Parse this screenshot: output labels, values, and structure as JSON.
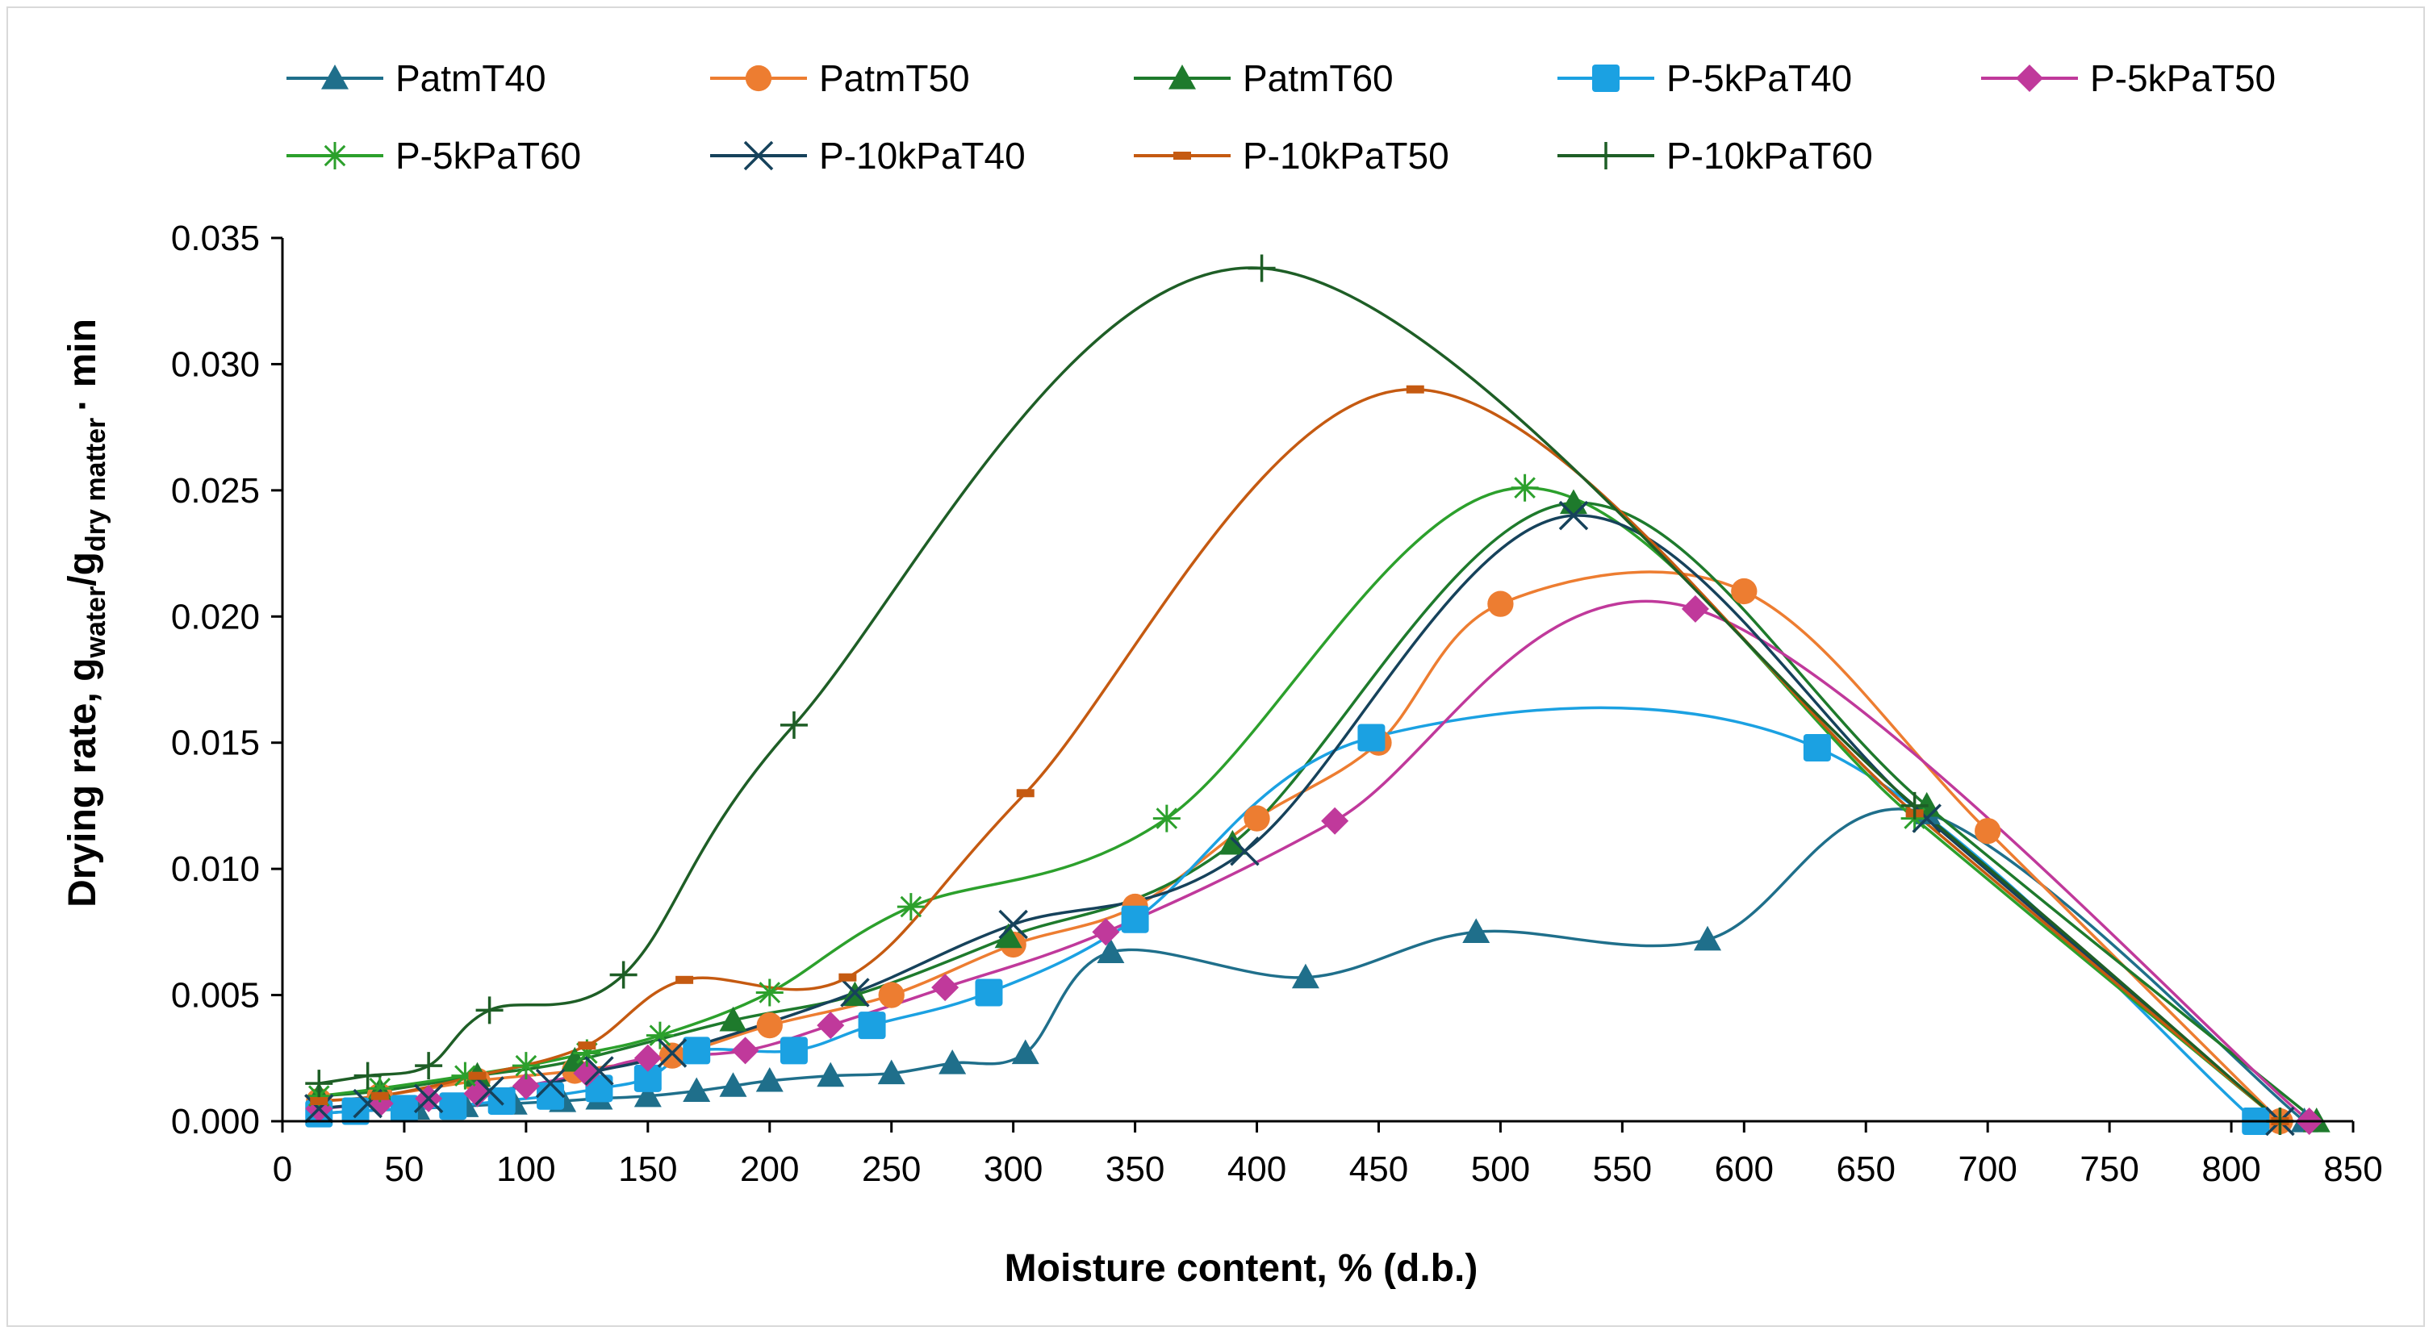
{
  "chart_data": {
    "type": "scatter",
    "xlabel": "Moisture content, % (d.b.)",
    "ylabel": {
      "main": "Drying rate, g",
      "sub1": "water",
      "mid": "/g",
      "sub2": "dry matter",
      "tail": "· min"
    },
    "xlim": [
      0,
      850
    ],
    "ylim": [
      0,
      0.035
    ],
    "xticks": [
      "0",
      "50",
      "100",
      "150",
      "200",
      "250",
      "300",
      "350",
      "400",
      "450",
      "500",
      "550",
      "600",
      "650",
      "700",
      "750",
      "800",
      "850"
    ],
    "yticks": [
      "0.000",
      "0.005",
      "0.010",
      "0.015",
      "0.020",
      "0.025",
      "0.030",
      "0.035"
    ],
    "grid": false,
    "legend_position": "top",
    "series": [
      {
        "name": "PatmT40",
        "color": "#1f6f8b",
        "marker": "triangle",
        "x": [
          15,
          30,
          55,
          75,
          95,
          115,
          130,
          150,
          170,
          185,
          200,
          225,
          250,
          275,
          305,
          340,
          420,
          490,
          585,
          675,
          830
        ],
        "y": [
          0.0003,
          0.0004,
          0.0005,
          0.0006,
          0.0007,
          0.0008,
          0.0009,
          0.001,
          0.0012,
          0.0014,
          0.0016,
          0.0018,
          0.0019,
          0.0023,
          0.0027,
          0.0067,
          0.0057,
          0.0075,
          0.0072,
          0.0122,
          0
        ]
      },
      {
        "name": "PatmT50",
        "color": "#ed7d31",
        "marker": "circle",
        "x": [
          15,
          40,
          80,
          120,
          160,
          200,
          250,
          300,
          350,
          400,
          450,
          500,
          600,
          700,
          820
        ],
        "y": [
          0.0008,
          0.001,
          0.0016,
          0.002,
          0.0026,
          0.0038,
          0.005,
          0.007,
          0.0085,
          0.012,
          0.015,
          0.0205,
          0.021,
          0.0115,
          0
        ]
      },
      {
        "name": "PatmT60",
        "color": "#1e7a2c",
        "marker": "triangle",
        "x": [
          15,
          40,
          80,
          120,
          185,
          235,
          298,
          390,
          530,
          675,
          835
        ],
        "y": [
          0.001,
          0.0012,
          0.0018,
          0.0024,
          0.004,
          0.005,
          0.0073,
          0.011,
          0.0245,
          0.0125,
          0
        ]
      },
      {
        "name": "P-5kPaT40",
        "color": "#1ba1e2",
        "marker": "square",
        "x": [
          15,
          30,
          50,
          70,
          90,
          110,
          130,
          150,
          170,
          210,
          242,
          290,
          350,
          447,
          630,
          810
        ],
        "y": [
          0.0003,
          0.0004,
          0.0005,
          0.0006,
          0.0008,
          0.001,
          0.0013,
          0.0017,
          0.0028,
          0.0028,
          0.0038,
          0.0051,
          0.008,
          0.0152,
          0.0148,
          0
        ]
      },
      {
        "name": "P-5kPaT50",
        "color": "#c0399b",
        "marker": "diamond",
        "x": [
          15,
          40,
          60,
          80,
          100,
          125,
          150,
          190,
          225,
          272,
          338,
          432,
          580,
          832
        ],
        "y": [
          0.0005,
          0.0007,
          0.0009,
          0.0011,
          0.0014,
          0.0019,
          0.0025,
          0.0028,
          0.0038,
          0.0053,
          0.0075,
          0.0119,
          0.0203,
          0
        ]
      },
      {
        "name": "P-5kPaT60",
        "color": "#2ca02c",
        "marker": "star",
        "x": [
          15,
          40,
          75,
          100,
          125,
          155,
          200,
          258,
          363,
          510,
          670,
          820
        ],
        "y": [
          0.001,
          0.0013,
          0.0018,
          0.0022,
          0.0027,
          0.0034,
          0.0051,
          0.0085,
          0.012,
          0.0251,
          0.012,
          0
        ]
      },
      {
        "name": "P-10kPaT40",
        "color": "#16425b",
        "marker": "x",
        "x": [
          15,
          35,
          60,
          85,
          110,
          130,
          160,
          235,
          300,
          395,
          530,
          675,
          820
        ],
        "y": [
          0.0005,
          0.0007,
          0.0009,
          0.0012,
          0.0015,
          0.002,
          0.0027,
          0.0051,
          0.0078,
          0.0107,
          0.024,
          0.012,
          0
        ]
      },
      {
        "name": "P-10kPaT50",
        "color": "#c55a11",
        "marker": "dash",
        "x": [
          15,
          40,
          80,
          125,
          165,
          232,
          305,
          465,
          670,
          820
        ],
        "y": [
          0.0008,
          0.001,
          0.0018,
          0.003,
          0.0056,
          0.0057,
          0.013,
          0.029,
          0.0122,
          0
        ]
      },
      {
        "name": "P-10kPaT60",
        "color": "#1e5e26",
        "marker": "plus",
        "x": [
          15,
          35,
          60,
          85,
          140,
          210,
          402,
          670,
          820
        ],
        "y": [
          0.0015,
          0.0018,
          0.0022,
          0.0044,
          0.0058,
          0.0157,
          0.0338,
          0.0125,
          0
        ]
      }
    ]
  }
}
